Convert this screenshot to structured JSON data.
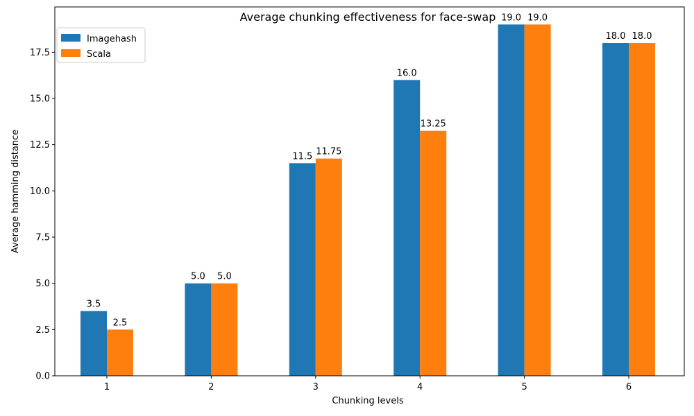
{
  "chart_data": {
    "type": "bar",
    "title": "Average chunking effectiveness for face-swap",
    "xlabel": "Chunking levels",
    "ylabel": "Average hamming distance",
    "categories": [
      "1",
      "2",
      "3",
      "4",
      "5",
      "6"
    ],
    "series": [
      {
        "name": "Imagehash",
        "color": "#1f77b4",
        "values": [
          3.5,
          5.0,
          11.5,
          16.0,
          19.0,
          18.0
        ],
        "labels": [
          "3.5",
          "5.0",
          "11.5",
          "16.0",
          "19.0",
          "18.0"
        ]
      },
      {
        "name": "Scala",
        "color": "#ff7f0e",
        "values": [
          2.5,
          5.0,
          11.75,
          13.25,
          19.0,
          18.0
        ],
        "labels": [
          "2.5",
          "5.0",
          "11.75",
          "13.25",
          "19.0",
          "18.0"
        ]
      }
    ],
    "ylim": [
      0,
      19.95
    ],
    "yticks": [
      "0.0",
      "2.5",
      "5.0",
      "7.5",
      "10.0",
      "12.5",
      "15.0",
      "17.5"
    ],
    "grid": false,
    "legend_position": "top-left"
  }
}
